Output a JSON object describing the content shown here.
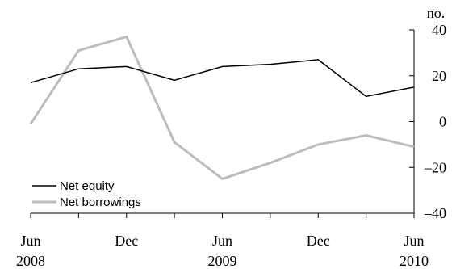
{
  "chart_data": {
    "type": "line",
    "x": [
      "Jun 2008",
      "Sep 2008",
      "Dec 2008",
      "Mar 2009",
      "Jun 2009",
      "Sep 2009",
      "Dec 2009",
      "Mar 2010",
      "Jun 2010"
    ],
    "series": [
      {
        "name": "Net equity",
        "color": "#000000",
        "values": [
          17,
          23,
          24,
          18,
          24,
          25,
          27,
          11,
          15
        ]
      },
      {
        "name": "Net borrowings",
        "color": "#bdbdbd",
        "values": [
          -1,
          31,
          37,
          -9,
          -25,
          -18,
          -10,
          -6,
          -11
        ]
      }
    ],
    "x_tick_labels": [
      {
        "month": "Jun",
        "year": "2008"
      },
      {
        "month": "Dec",
        "year": ""
      },
      {
        "month": "Jun",
        "year": "2009"
      },
      {
        "month": "Dec",
        "year": ""
      },
      {
        "month": "Jun",
        "year": "2010"
      }
    ],
    "y_ticks": [
      40,
      20,
      0,
      -20,
      -40
    ],
    "y_tick_labels": [
      "40",
      "20",
      "0",
      "–20",
      "–40"
    ],
    "yunit": "no.",
    "ylim": [
      -40,
      40
    ],
    "legend_position": "bottom-left",
    "grid": false,
    "title": "",
    "xlabel": "",
    "ylabel": ""
  }
}
